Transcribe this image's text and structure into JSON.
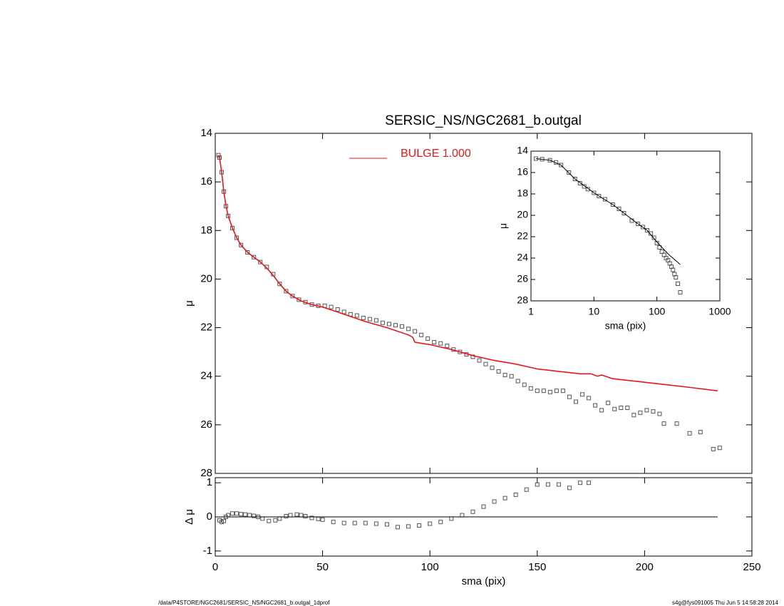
{
  "chart_data": [
    {
      "type": "scatter",
      "title": "SERSIC_NS/NGC2681_b.outgal",
      "ylabel": "μ",
      "legend": "top-center",
      "xlim": [
        0,
        250
      ],
      "xticks": [
        0,
        50,
        100,
        150,
        200,
        250
      ],
      "ylim": [
        28,
        14
      ],
      "yticks": [
        14,
        16,
        18,
        20,
        22,
        24,
        26,
        28
      ],
      "series": [
        {
          "mode": "markers",
          "color": "#555555",
          "x": [
            1.5,
            2,
            3,
            4,
            5,
            6,
            8,
            10,
            12,
            15,
            18,
            21,
            24,
            27,
            30,
            33,
            36,
            39,
            42,
            45,
            48,
            51,
            54,
            57,
            60,
            63,
            66,
            69,
            72,
            75,
            78,
            81,
            84,
            87,
            90,
            93,
            96,
            99,
            102,
            105,
            108,
            111,
            114,
            117,
            120,
            123,
            126,
            129,
            132,
            135,
            138,
            141,
            144,
            147,
            150,
            153,
            156,
            159,
            162,
            165,
            168,
            171,
            174,
            177,
            180,
            183,
            186,
            189,
            192,
            195,
            198,
            201,
            204,
            207,
            209,
            215,
            221,
            226,
            232,
            235
          ],
          "values": [
            14.9,
            15.0,
            15.6,
            16.4,
            17.0,
            17.4,
            17.9,
            18.3,
            18.6,
            18.9,
            19.1,
            19.3,
            19.5,
            19.8,
            20.2,
            20.5,
            20.7,
            20.85,
            20.95,
            21.05,
            21.1,
            21.1,
            21.15,
            21.25,
            21.35,
            21.45,
            21.5,
            21.6,
            21.65,
            21.7,
            21.8,
            21.85,
            21.9,
            21.95,
            22.05,
            22.15,
            22.3,
            22.45,
            22.6,
            22.65,
            22.75,
            22.9,
            23.0,
            23.1,
            23.2,
            23.35,
            23.5,
            23.65,
            23.8,
            23.95,
            24.0,
            24.2,
            24.35,
            24.5,
            24.6,
            24.6,
            24.65,
            24.6,
            24.6,
            24.85,
            25.05,
            24.75,
            24.9,
            25.2,
            25.4,
            25.1,
            25.35,
            25.3,
            25.3,
            25.6,
            25.5,
            25.4,
            25.45,
            25.55,
            25.95,
            25.95,
            26.35,
            26.3,
            27.0,
            26.95
          ]
        },
        {
          "mode": "lines",
          "name": "BULGE  1.000",
          "color": "#e8161b",
          "x": [
            1.5,
            2,
            3,
            4,
            5,
            6,
            8,
            10,
            12,
            15,
            18,
            21,
            24,
            27,
            30,
            33,
            36,
            40,
            45,
            50,
            60,
            70,
            80,
            90,
            92,
            93,
            100,
            110,
            120,
            130,
            140,
            150,
            160,
            170,
            175,
            178,
            180,
            185,
            190,
            200,
            210,
            220,
            234
          ],
          "values": [
            14.9,
            15.0,
            15.6,
            16.4,
            17.0,
            17.4,
            17.9,
            18.3,
            18.6,
            18.9,
            19.1,
            19.3,
            19.55,
            19.85,
            20.2,
            20.5,
            20.7,
            20.9,
            21.05,
            21.15,
            21.45,
            21.75,
            22.0,
            22.3,
            22.4,
            22.6,
            22.7,
            22.9,
            23.15,
            23.35,
            23.5,
            23.7,
            23.8,
            23.9,
            23.9,
            24.0,
            23.95,
            24.1,
            24.15,
            24.25,
            24.35,
            24.45,
            24.6
          ]
        }
      ]
    },
    {
      "type": "scatter",
      "xlabel": "sma (pix)",
      "ylabel": "Δ μ",
      "xlim": [
        0,
        250
      ],
      "xticks": [
        0,
        50,
        100,
        150,
        200,
        250
      ],
      "ylim": [
        -1.15,
        1.15
      ],
      "yticks": [
        -1,
        0,
        1
      ],
      "series": [
        {
          "mode": "markers",
          "color": "#555555",
          "x": [
            2,
            3,
            4,
            5,
            6,
            8,
            10,
            12,
            14,
            16,
            18,
            20,
            22,
            25,
            28,
            30,
            33,
            35,
            38,
            40,
            42,
            45,
            48,
            50,
            55,
            60,
            65,
            70,
            75,
            80,
            85,
            90,
            95,
            100,
            105,
            110,
            115,
            120,
            125,
            130,
            135,
            140,
            145,
            150,
            155,
            160,
            165,
            170,
            174
          ],
          "values": [
            -0.1,
            -0.15,
            -0.12,
            0,
            0.05,
            0.1,
            0.1,
            0.08,
            0.07,
            0.05,
            0.03,
            0,
            -0.05,
            -0.12,
            -0.1,
            -0.05,
            0.02,
            0.05,
            0.07,
            0.05,
            0.02,
            -0.03,
            -0.06,
            -0.08,
            -0.15,
            -0.18,
            -0.18,
            -0.18,
            -0.2,
            -0.22,
            -0.3,
            -0.28,
            -0.25,
            -0.2,
            -0.15,
            -0.05,
            0.05,
            0.15,
            0.3,
            0.45,
            0.55,
            0.65,
            0.8,
            0.95,
            0.95,
            0.95,
            0.85,
            1.0,
            1.0
          ]
        },
        {
          "mode": "lines",
          "color": "#000000",
          "x": [
            0,
            234
          ],
          "values": [
            0,
            0
          ]
        }
      ]
    },
    {
      "type": "scatter",
      "xlabel": "sma (pix)",
      "ylabel": "μ",
      "xlog": true,
      "xlim": [
        1,
        1000
      ],
      "xticks": [
        1,
        10,
        100,
        1000
      ],
      "ylim": [
        28,
        14
      ],
      "yticks": [
        14,
        16,
        18,
        20,
        22,
        24,
        26,
        28
      ],
      "series": [
        {
          "mode": "markers",
          "color": "#555555",
          "x": [
            1.2,
            1.5,
            2,
            2.5,
            3,
            4,
            5,
            6,
            7,
            8,
            10,
            12,
            15,
            20,
            25,
            30,
            40,
            50,
            60,
            70,
            80,
            90,
            100,
            110,
            120,
            130,
            140,
            150,
            160,
            170,
            180,
            190,
            200,
            215,
            235
          ],
          "values": [
            14.7,
            14.75,
            14.85,
            15.05,
            15.3,
            16.0,
            16.6,
            17.0,
            17.3,
            17.55,
            17.9,
            18.2,
            18.5,
            19.0,
            19.4,
            19.8,
            20.5,
            20.8,
            21.1,
            21.4,
            21.7,
            22.1,
            22.6,
            23.0,
            23.4,
            23.7,
            24.0,
            24.2,
            24.5,
            24.8,
            25.1,
            25.5,
            25.8,
            26.4,
            27.2
          ]
        },
        {
          "mode": "lines",
          "color": "#000000",
          "x": [
            1.2,
            2,
            3,
            5,
            10,
            20,
            30,
            50,
            70,
            100,
            150,
            235
          ],
          "values": [
            14.7,
            14.85,
            15.3,
            16.6,
            17.9,
            19.0,
            19.8,
            20.8,
            21.4,
            22.5,
            23.6,
            24.6
          ]
        }
      ]
    }
  ],
  "footer": {
    "left": "/data/P4STORE/NGC2681/SERSIC_NS/NGC2681_b.outgal_1dprof",
    "right": "s4g@fys091005  Thu Jun  5 14:58:28 2014"
  }
}
